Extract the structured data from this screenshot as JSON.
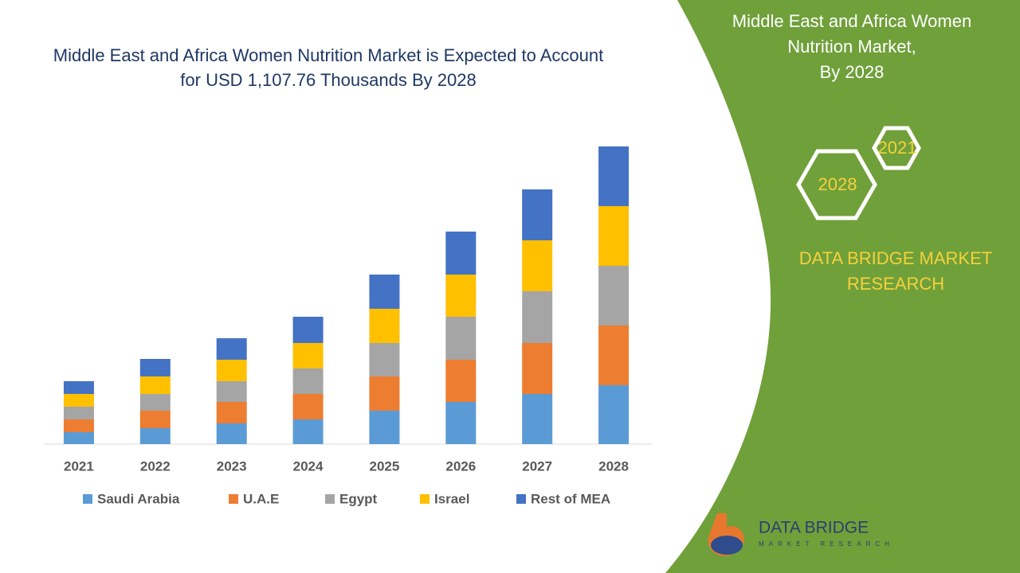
{
  "chart_data": {
    "type": "stacked_bar",
    "title": "Middle East and Africa Women Nutrition Market is Expected to Account for USD 1,107.76 Thousands By 2028",
    "categories": [
      "2021",
      "2022",
      "2023",
      "2024",
      "2025",
      "2026",
      "2027",
      "2028"
    ],
    "series": [
      {
        "name": "Saudi Arabia",
        "color": "#5b9bd5",
        "values": [
          15,
          20,
          26,
          31,
          42,
          53,
          63,
          74
        ]
      },
      {
        "name": "U.A.E",
        "color": "#ed7d31",
        "values": [
          16,
          22,
          27,
          32,
          43,
          53,
          64,
          75
        ]
      },
      {
        "name": "Egypt",
        "color": "#a5a5a5",
        "values": [
          16,
          21,
          26,
          32,
          42,
          54,
          65,
          75
        ]
      },
      {
        "name": "Israel",
        "color": "#ffc000",
        "values": [
          16,
          22,
          27,
          32,
          43,
          53,
          64,
          75
        ]
      },
      {
        "name": "Rest of MEA",
        "color": "#4472c4",
        "values": [
          16,
          22,
          27,
          33,
          43,
          54,
          64,
          75
        ]
      }
    ],
    "ylim": [
      0,
      374
    ]
  },
  "panel": {
    "title_lines": [
      "Middle East and Africa Women",
      "Nutrition Market,",
      "By 2028"
    ],
    "hex_years": [
      "2021",
      "2028"
    ],
    "brand_lines": [
      "DATA BRIDGE MARKET",
      "RESEARCH"
    ]
  },
  "logo": {
    "name": "DATA BRIDGE",
    "tagline": "MARKET RESEARCH"
  }
}
